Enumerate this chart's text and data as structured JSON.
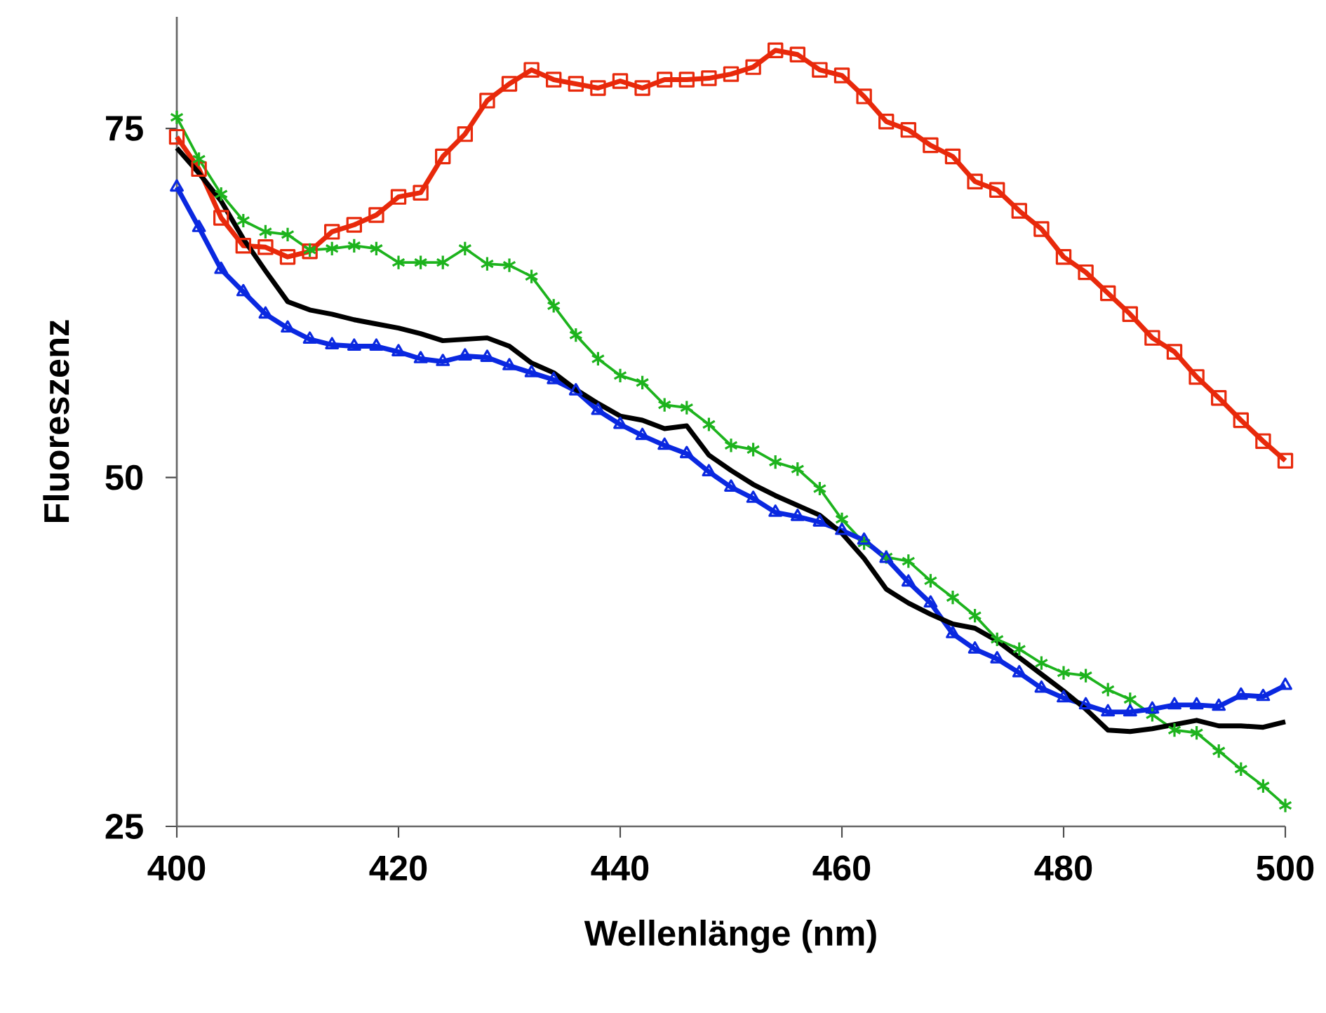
{
  "chart_data": {
    "type": "line",
    "xlabel": "Wellenlänge (nm)",
    "ylabel": "Fluoreszenz",
    "x": [
      400,
      402,
      404,
      406,
      408,
      410,
      412,
      414,
      416,
      418,
      420,
      422,
      424,
      426,
      428,
      430,
      432,
      434,
      436,
      438,
      440,
      442,
      444,
      446,
      448,
      450,
      452,
      454,
      456,
      458,
      460,
      462,
      464,
      466,
      468,
      470,
      472,
      474,
      476,
      478,
      480,
      482,
      484,
      486,
      488,
      490,
      492,
      494,
      496,
      498,
      500
    ],
    "series": [
      {
        "color": "#e8290b",
        "marker": "square",
        "values": [
          74.4,
          72.1,
          68.6,
          66.6,
          66.5,
          65.8,
          66.2,
          67.6,
          68.1,
          68.8,
          70.1,
          70.4,
          73.0,
          74.6,
          77.0,
          78.2,
          79.2,
          78.5,
          78.2,
          77.9,
          78.4,
          77.9,
          78.5,
          78.5,
          78.6,
          78.9,
          79.4,
          80.6,
          80.3,
          79.2,
          78.8,
          77.3,
          75.5,
          74.9,
          73.8,
          73.0,
          71.2,
          70.6,
          69.1,
          67.8,
          65.8,
          64.7,
          63.2,
          61.7,
          60.0,
          59.0,
          57.2,
          55.7,
          54.1,
          52.6,
          51.2
        ]
      },
      {
        "color": "#1db31d",
        "marker": "cross",
        "values": [
          75.8,
          72.8,
          70.3,
          68.4,
          67.6,
          67.4,
          66.3,
          66.4,
          66.6,
          66.4,
          65.4,
          65.4,
          65.4,
          66.4,
          65.3,
          65.2,
          64.4,
          62.3,
          60.2,
          58.5,
          57.3,
          56.8,
          55.2,
          55.0,
          53.8,
          52.3,
          52.0,
          51.1,
          50.6,
          49.2,
          47.0,
          45.3,
          44.3,
          44.0,
          42.6,
          41.4,
          40.1,
          38.4,
          37.7,
          36.7,
          36.0,
          35.8,
          34.8,
          34.1,
          33.0,
          31.9,
          31.7,
          30.4,
          29.1,
          27.9,
          26.5
        ]
      },
      {
        "color": "#0a28e0",
        "marker": "triangle",
        "values": [
          70.8,
          67.9,
          64.9,
          63.3,
          61.7,
          60.7,
          59.9,
          59.5,
          59.4,
          59.4,
          59.0,
          58.5,
          58.3,
          58.7,
          58.6,
          58.0,
          57.5,
          57.0,
          56.2,
          54.8,
          53.8,
          53.0,
          52.3,
          51.7,
          50.4,
          49.3,
          48.5,
          47.5,
          47.2,
          46.8,
          46.2,
          45.5,
          44.2,
          42.5,
          41.0,
          38.8,
          37.7,
          37.0,
          36.0,
          34.9,
          34.2,
          33.7,
          33.2,
          33.2,
          33.4,
          33.7,
          33.7,
          33.6,
          34.4,
          34.3,
          35.1
        ]
      },
      {
        "color": "#000000",
        "marker": "none",
        "values": [
          73.6,
          71.8,
          69.8,
          67.1,
          64.8,
          62.6,
          62.0,
          61.7,
          61.3,
          61.0,
          60.7,
          60.3,
          59.8,
          59.9,
          60.0,
          59.4,
          58.2,
          57.5,
          56.3,
          55.3,
          54.4,
          54.1,
          53.5,
          53.7,
          51.6,
          50.5,
          49.5,
          48.7,
          48.0,
          47.3,
          46.0,
          44.2,
          42.0,
          41.0,
          40.2,
          39.5,
          39.2,
          38.3,
          37.1,
          35.9,
          34.7,
          33.4,
          31.9,
          31.8,
          32.0,
          32.3,
          32.6,
          32.2,
          32.2,
          32.1,
          32.5
        ]
      }
    ],
    "xlim": [
      400,
      500
    ],
    "ylim": [
      25,
      83
    ],
    "xticks": [
      400,
      420,
      440,
      460,
      480,
      500
    ],
    "yticks": [
      25,
      50,
      75
    ],
    "grid": false
  }
}
